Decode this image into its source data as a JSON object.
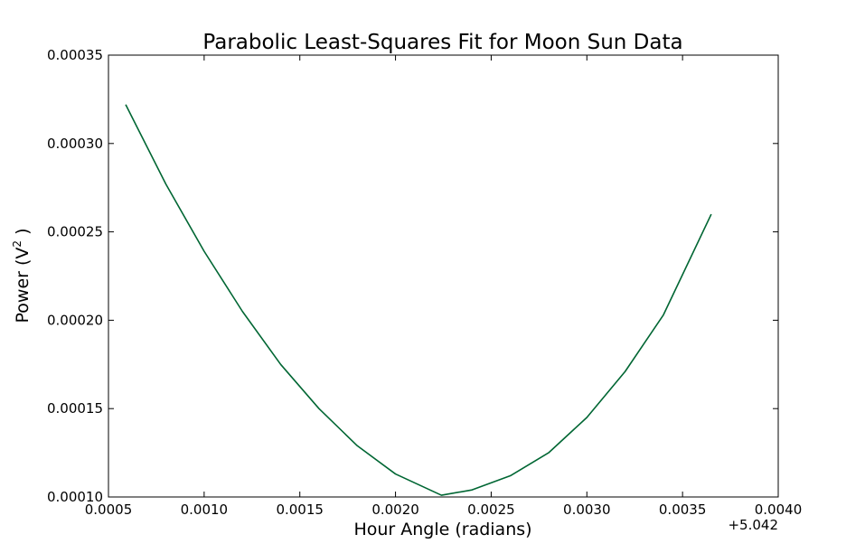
{
  "chart_data": {
    "type": "line",
    "title": "Parabolic Least-Squares Fit for Moon Sun Data",
    "xlabel": "Hour Angle (radians)",
    "ylabel_main": "Power (V",
    "ylabel_sup": "2",
    "ylabel_close": " )",
    "x_offset_label": "+5.042",
    "xlim": [
      0.0005,
      0.004
    ],
    "ylim": [
      0.0001,
      0.00035
    ],
    "x_ticks": [
      0.0005,
      0.001,
      0.0015,
      0.002,
      0.0025,
      0.003,
      0.0035,
      0.004
    ],
    "x_tick_labels": [
      "0.0005",
      "0.0010",
      "0.0015",
      "0.0020",
      "0.0025",
      "0.0030",
      "0.0035",
      "0.0040"
    ],
    "y_ticks": [
      0.0001,
      0.00015,
      0.0002,
      0.00025,
      0.0003,
      0.00035
    ],
    "y_tick_labels": [
      "0.00010",
      "0.00015",
      "0.00020",
      "0.00025",
      "0.00030",
      "0.00035"
    ],
    "grid": false,
    "series": [
      {
        "color": "#006633",
        "x": [
          0.00059,
          0.0008,
          0.001,
          0.0012,
          0.0014,
          0.0016,
          0.0018,
          0.002,
          0.00224,
          0.0024,
          0.0026,
          0.0028,
          0.003,
          0.0032,
          0.0034,
          0.00365
        ],
        "y": [
          0.000322,
          0.000277,
          0.000239,
          0.000205,
          0.000175,
          0.00015,
          0.000129,
          0.000113,
          0.000101,
          0.000104,
          0.000112,
          0.000125,
          0.000145,
          0.000171,
          0.000203,
          0.00026
        ]
      }
    ]
  }
}
